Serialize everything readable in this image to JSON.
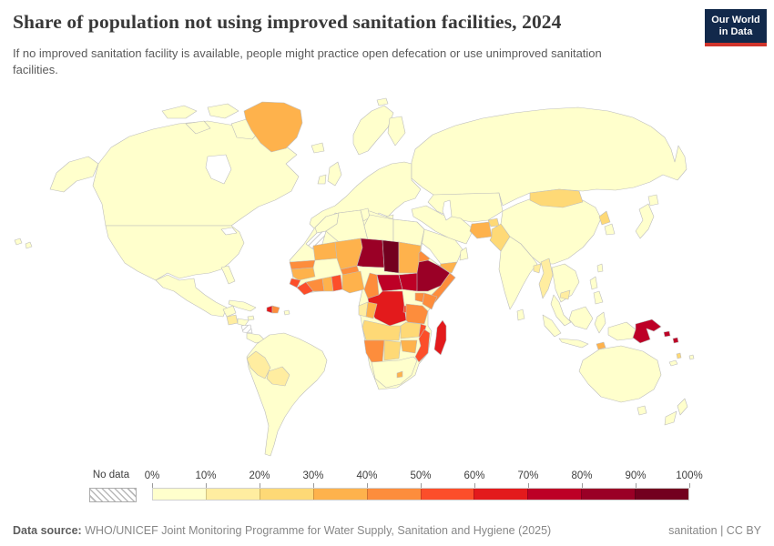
{
  "header": {
    "title": "Share of population not using improved sanitation facilities, 2024",
    "subtitle": "If no improved sanitation facility is available, people might practice open defecation or use unimproved sanitation facilities.",
    "logo": {
      "line1": "Our World",
      "line2": "in Data",
      "bg_color": "#12294b",
      "accent_color": "#d0342b"
    }
  },
  "chart_data": {
    "type": "choropleth-world-map",
    "title": "Share of population not using improved sanitation facilities, 2024",
    "year": "2024",
    "unit": "% of population",
    "legend": {
      "no_data_label": "No data",
      "tick_labels": [
        "0%",
        "10%",
        "20%",
        "30%",
        "40%",
        "50%",
        "60%",
        "70%",
        "80%",
        "90%",
        "100%"
      ],
      "bin_ranges": [
        "0-10",
        "10-20",
        "20-30",
        "30-40",
        "40-50",
        "50-60",
        "60-70",
        "70-80",
        "80-90",
        "90-100"
      ],
      "bin_colors": [
        "#ffffcc",
        "#ffeda0",
        "#fed976",
        "#feb24c",
        "#fd8d3c",
        "#fc4e2a",
        "#e31a1c",
        "#bd0026",
        "#9a0026",
        "#73001f"
      ],
      "no_data_hatch_color": "#b3b3b3"
    },
    "regions": {
      "canada": 0,
      "arctic-island-1": 0,
      "arctic-island-2": 0,
      "arctic-island-3": 0,
      "baffin-island": 0,
      "alaska": 0,
      "united-states": 0,
      "mexico": 0,
      "guatemala": 1,
      "honduras": 0,
      "nicaragua": -1,
      "costa-rica-panama": 0,
      "cuba": 0,
      "jamaica": 0,
      "haiti": 6,
      "dominican-republic": 4,
      "puerto-rico": 0,
      "greenland": 3,
      "iceland": 0,
      "hawaii": 0,
      "south-america": 0,
      "peru": 1,
      "bolivia": 1,
      "scandinavia": 0,
      "finland": 0,
      "uk": 0,
      "ireland": 0,
      "europe-mainland": 0,
      "italy": 0,
      "greece": 0,
      "svalbard": 0,
      "russia": 0,
      "kazakhstan": 0,
      "tajikistan": 2,
      "afghanistan": 3,
      "pakistan": 2,
      "iran-middle-east": 0,
      "saudi-arabia": 0,
      "yemen": 3,
      "oman": 0,
      "mongolia": 2,
      "china": 0,
      "north-korea": 2,
      "south-korea": 0,
      "japan": 0,
      "hokkaido": 0,
      "india": 0,
      "bangladesh": 1,
      "myanmar": 1,
      "indochina": 0,
      "cambodia": 1,
      "malay-peninsula": 0,
      "sri-lanka": 0,
      "sumatra": 0,
      "java": 0,
      "borneo": 0,
      "sulawesi": 0,
      "philippines-north": 0,
      "philippines-south": 0,
      "taiwan": 0,
      "west-papua": 0,
      "papua-new-guinea": 7,
      "solomon-islands-1": 7,
      "solomon-islands-2": 7,
      "timor-leste": 3,
      "vanuatu": 2,
      "new-caledonia": 0,
      "fiji": 0,
      "australia": 0,
      "tasmania": 0,
      "new-zealand-north": 0,
      "new-zealand-south": 0,
      "africa-base": 0,
      "morocco": 0,
      "western-sahara": -1,
      "algeria": 0,
      "tunisia": 0,
      "libya": 0,
      "egypt": 0,
      "mauritania": 3,
      "mali": 3,
      "niger": 8,
      "chad": 9,
      "sudan": 3,
      "eritrea": 4,
      "senegal": 4,
      "guinea": 3,
      "sierra-leone": 5,
      "liberia": 5,
      "cote-divoire": 4,
      "ghana": 3,
      "togo-benin": 5,
      "burkina-faso": 4,
      "nigeria": 3,
      "cameroon": 4,
      "central-african-republic": 7,
      "south-sudan": 7,
      "ethiopia": 8,
      "somalia": 4,
      "uganda": 4,
      "kenya": 4,
      "dr-congo": 6,
      "gabon": 1,
      "congo": 3,
      "rwanda-burundi": 5,
      "tanzania": 4,
      "angola": 2,
      "zambia": 2,
      "malawi": 5,
      "mozambique": 5,
      "zimbabwe": 3,
      "namibia": 4,
      "botswana": 2,
      "south-africa": 0,
      "lesotho": 3,
      "madagascar": 6
    }
  },
  "footer": {
    "datasource_label": "Data source:",
    "datasource_text": " WHO/UNICEF Joint Monitoring Programme for Water Supply, Sanitation and Hygiene (2025)",
    "right_text": "sanitation | CC BY"
  }
}
